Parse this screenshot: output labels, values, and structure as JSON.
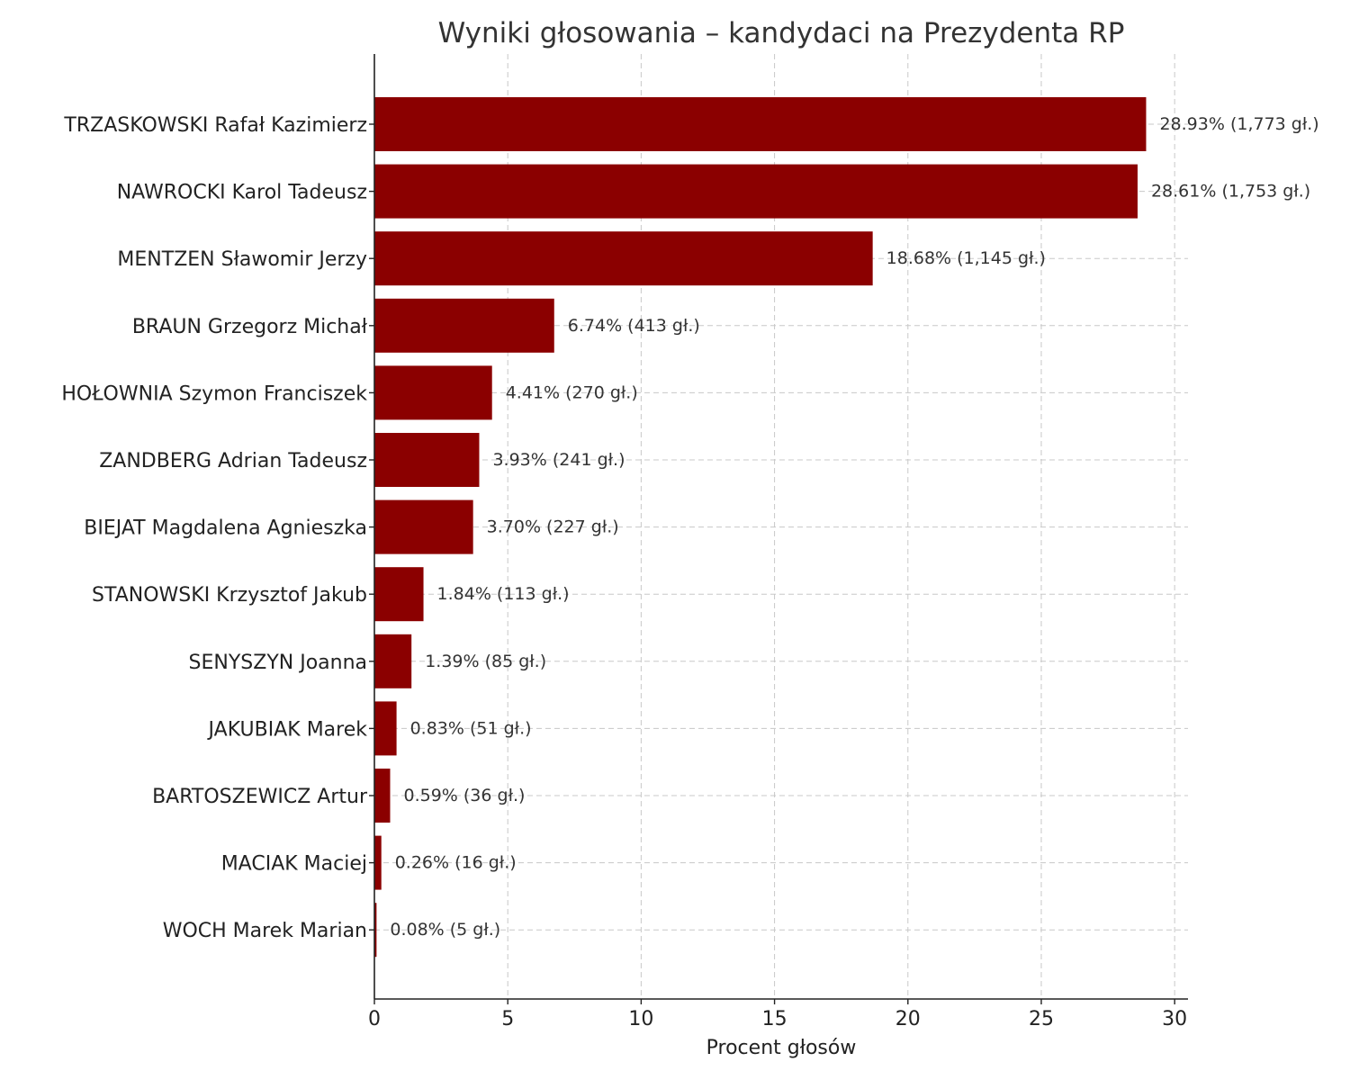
{
  "colors": {
    "bar": "#8b0000",
    "grid": "#c8c8c8",
    "text": "#222222"
  },
  "chart_data": {
    "type": "bar",
    "orientation": "horizontal",
    "title": "Wyniki głosowania – kandydaci na Prezydenta RP",
    "xlabel": "Procent głosów",
    "ylabel": "",
    "xlim": [
      0,
      30.5
    ],
    "xticks": [
      0,
      5,
      10,
      15,
      20,
      25,
      30
    ],
    "grid": true,
    "categories": [
      "TRZASKOWSKI Rafał Kazimierz",
      "NAWROCKI Karol Tadeusz",
      "MENTZEN Sławomir Jerzy",
      "BRAUN Grzegorz Michał",
      "HOŁOWNIA Szymon Franciszek",
      "ZANDBERG Adrian Tadeusz",
      "BIEJAT Magdalena Agnieszka",
      "STANOWSKI Krzysztof Jakub",
      "SENYSZYN Joanna",
      "JAKUBIAK Marek",
      "BARTOSZEWICZ Artur",
      "MACIAK Maciej",
      "WOCH Marek Marian"
    ],
    "values": [
      28.93,
      28.61,
      18.68,
      6.74,
      4.41,
      3.93,
      3.7,
      1.84,
      1.39,
      0.83,
      0.59,
      0.26,
      0.08
    ],
    "votes": [
      1773,
      1753,
      1145,
      413,
      270,
      241,
      227,
      113,
      85,
      51,
      36,
      16,
      5
    ],
    "data_labels": [
      "28.93% (1,773 gł.)",
      "28.61% (1,753 gł.)",
      "18.68% (1,145 gł.)",
      "6.74% (413 gł.)",
      "4.41% (270 gł.)",
      "3.93% (241 gł.)",
      "3.70% (227 gł.)",
      "1.84% (113 gł.)",
      "1.39% (85 gł.)",
      "0.83% (51 gł.)",
      "0.59% (36 gł.)",
      "0.26% (16 gł.)",
      "0.08% (5 gł.)"
    ]
  }
}
